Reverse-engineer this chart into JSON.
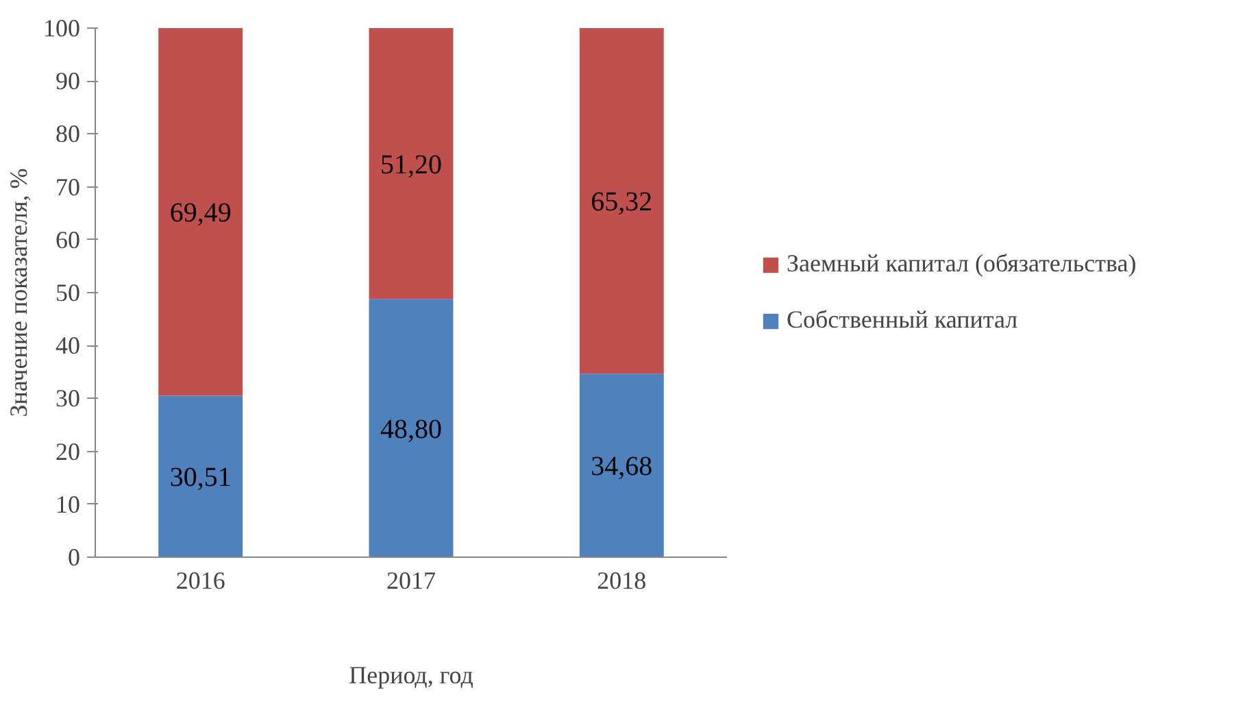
{
  "chart_data": {
    "type": "bar",
    "stacked": true,
    "xlabel": "Период, год",
    "ylabel": "Значение показателя, %",
    "categories": [
      "2016",
      "2017",
      "2018"
    ],
    "series": [
      {
        "name": "Собственный капитал",
        "color": "#4f81bd",
        "values": [
          30.51,
          48.8,
          34.68
        ],
        "value_labels": [
          "30,51",
          "48,80",
          "34,68"
        ]
      },
      {
        "name": "Заемный капитал (обязательства)",
        "color": "#c0504d",
        "values": [
          69.49,
          51.2,
          65.32
        ],
        "value_labels": [
          "69,49",
          "51,20",
          "65,32"
        ]
      }
    ],
    "ylim": [
      0,
      100
    ],
    "yticks": [
      0,
      10,
      20,
      30,
      40,
      50,
      60,
      70,
      80,
      90,
      100
    ],
    "grid": false,
    "legend": "right"
  }
}
